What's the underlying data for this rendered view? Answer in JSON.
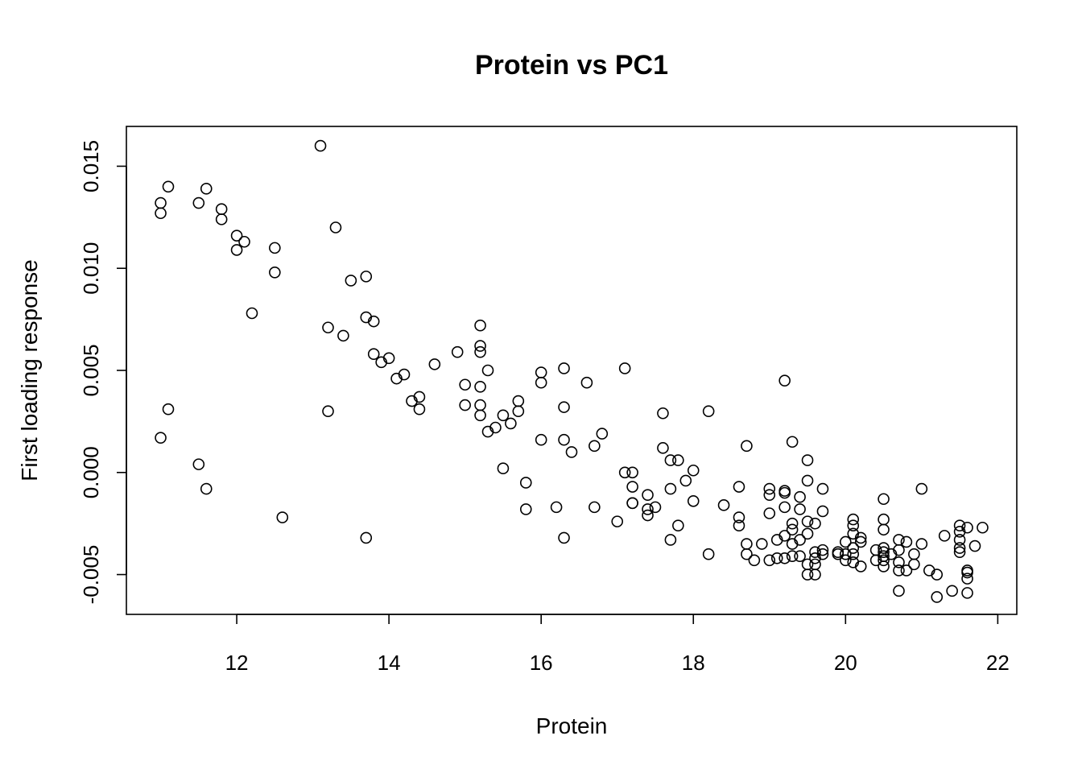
{
  "chart_data": {
    "type": "scatter",
    "title": "Protein vs PC1",
    "xlabel": "Protein",
    "ylabel": "First loading response",
    "xlim": [
      10.55,
      22.25
    ],
    "ylim": [
      -0.00695,
      0.01695
    ],
    "x_ticks": [
      12,
      14,
      16,
      18,
      20,
      22
    ],
    "x_tick_labels": [
      "12",
      "14",
      "16",
      "18",
      "20",
      "22"
    ],
    "y_ticks": [
      -0.005,
      0.0,
      0.005,
      0.01,
      0.015
    ],
    "y_tick_labels": [
      "-0.005",
      "0.000",
      "0.005",
      "0.010",
      "0.015"
    ],
    "grid": false,
    "legend": "none",
    "marker": "open-circle",
    "points": [
      [
        11.0,
        0.0132
      ],
      [
        11.0,
        0.0127
      ],
      [
        11.1,
        0.014
      ],
      [
        11.0,
        0.0017
      ],
      [
        11.1,
        0.0031
      ],
      [
        11.5,
        0.0132
      ],
      [
        11.6,
        0.0139
      ],
      [
        11.5,
        0.0004
      ],
      [
        11.6,
        -0.0008
      ],
      [
        11.8,
        0.0129
      ],
      [
        11.8,
        0.0124
      ],
      [
        12.0,
        0.0116
      ],
      [
        12.0,
        0.0109
      ],
      [
        12.1,
        0.0113
      ],
      [
        12.2,
        0.0078
      ],
      [
        12.5,
        0.011
      ],
      [
        12.5,
        0.0098
      ],
      [
        12.6,
        -0.0022
      ],
      [
        13.1,
        0.016
      ],
      [
        13.2,
        0.0071
      ],
      [
        13.2,
        0.003
      ],
      [
        13.3,
        0.012
      ],
      [
        13.4,
        0.0067
      ],
      [
        13.5,
        0.0094
      ],
      [
        13.7,
        0.0096
      ],
      [
        13.7,
        0.0076
      ],
      [
        13.7,
        -0.0032
      ],
      [
        13.8,
        0.0074
      ],
      [
        13.8,
        0.0058
      ],
      [
        13.9,
        0.0054
      ],
      [
        14.0,
        0.0056
      ],
      [
        14.1,
        0.0046
      ],
      [
        14.2,
        0.0048
      ],
      [
        14.3,
        0.0035
      ],
      [
        14.4,
        0.0037
      ],
      [
        14.4,
        0.0031
      ],
      [
        14.6,
        0.0053
      ],
      [
        14.9,
        0.0059
      ],
      [
        15.0,
        0.0043
      ],
      [
        15.0,
        0.0033
      ],
      [
        15.2,
        0.0072
      ],
      [
        15.2,
        0.0062
      ],
      [
        15.2,
        0.0059
      ],
      [
        15.2,
        0.0042
      ],
      [
        15.2,
        0.0033
      ],
      [
        15.2,
        0.0028
      ],
      [
        15.3,
        0.005
      ],
      [
        15.3,
        0.002
      ],
      [
        15.4,
        0.0022
      ],
      [
        15.5,
        0.0028
      ],
      [
        15.5,
        0.0002
      ],
      [
        15.6,
        0.0024
      ],
      [
        15.7,
        0.0035
      ],
      [
        15.7,
        0.003
      ],
      [
        15.8,
        -0.0005
      ],
      [
        15.8,
        -0.0018
      ],
      [
        16.0,
        0.0049
      ],
      [
        16.0,
        0.0044
      ],
      [
        16.0,
        0.0016
      ],
      [
        16.2,
        -0.0017
      ],
      [
        16.3,
        0.0051
      ],
      [
        16.3,
        0.0032
      ],
      [
        16.3,
        0.0016
      ],
      [
        16.3,
        -0.0032
      ],
      [
        16.4,
        0.001
      ],
      [
        16.6,
        0.0044
      ],
      [
        16.7,
        0.0013
      ],
      [
        16.7,
        -0.0017
      ],
      [
        16.8,
        0.0019
      ],
      [
        17.0,
        -0.0024
      ],
      [
        17.1,
        0.0051
      ],
      [
        17.1,
        0.0
      ],
      [
        17.2,
        0.0
      ],
      [
        17.2,
        -0.0007
      ],
      [
        17.2,
        -0.0015
      ],
      [
        17.2,
        -0.0015
      ],
      [
        17.4,
        -0.0011
      ],
      [
        17.4,
        -0.0018
      ],
      [
        17.4,
        -0.0021
      ],
      [
        17.5,
        -0.0017
      ],
      [
        17.6,
        0.0029
      ],
      [
        17.6,
        0.0012
      ],
      [
        17.7,
        0.0006
      ],
      [
        17.7,
        -0.0008
      ],
      [
        17.7,
        -0.0033
      ],
      [
        17.8,
        0.0006
      ],
      [
        17.8,
        -0.0026
      ],
      [
        17.9,
        -0.0004
      ],
      [
        18.0,
        0.0001
      ],
      [
        18.0,
        -0.0014
      ],
      [
        18.2,
        0.003
      ],
      [
        18.2,
        -0.004
      ],
      [
        18.4,
        -0.0016
      ],
      [
        18.6,
        -0.0007
      ],
      [
        18.6,
        -0.0022
      ],
      [
        18.6,
        -0.0026
      ],
      [
        18.7,
        0.0013
      ],
      [
        18.7,
        -0.0035
      ],
      [
        18.7,
        -0.004
      ],
      [
        18.8,
        -0.0043
      ],
      [
        18.9,
        -0.0035
      ],
      [
        19.0,
        -0.0008
      ],
      [
        19.0,
        -0.0011
      ],
      [
        19.0,
        -0.002
      ],
      [
        19.0,
        -0.0043
      ],
      [
        19.1,
        -0.0033
      ],
      [
        19.1,
        -0.0042
      ],
      [
        19.2,
        0.0045
      ],
      [
        19.2,
        -0.0009
      ],
      [
        19.2,
        -0.001
      ],
      [
        19.2,
        -0.0017
      ],
      [
        19.2,
        -0.0031
      ],
      [
        19.2,
        -0.0042
      ],
      [
        19.3,
        0.0015
      ],
      [
        19.3,
        -0.0025
      ],
      [
        19.3,
        -0.0028
      ],
      [
        19.3,
        -0.0035
      ],
      [
        19.3,
        -0.0041
      ],
      [
        19.4,
        -0.0012
      ],
      [
        19.4,
        -0.0018
      ],
      [
        19.4,
        -0.0033
      ],
      [
        19.4,
        -0.0041
      ],
      [
        19.5,
        0.0006
      ],
      [
        19.5,
        -0.0004
      ],
      [
        19.5,
        -0.0024
      ],
      [
        19.5,
        -0.003
      ],
      [
        19.5,
        -0.0045
      ],
      [
        19.5,
        -0.005
      ],
      [
        19.6,
        -0.0025
      ],
      [
        19.6,
        -0.0039
      ],
      [
        19.6,
        -0.0042
      ],
      [
        19.6,
        -0.0045
      ],
      [
        19.6,
        -0.005
      ],
      [
        19.7,
        -0.0008
      ],
      [
        19.7,
        -0.0019
      ],
      [
        19.7,
        -0.0038
      ],
      [
        19.7,
        -0.004
      ],
      [
        19.9,
        -0.0039
      ],
      [
        19.9,
        -0.004
      ],
      [
        20.0,
        -0.0034
      ],
      [
        20.0,
        -0.004
      ],
      [
        20.0,
        -0.0043
      ],
      [
        20.1,
        -0.0023
      ],
      [
        20.1,
        -0.0026
      ],
      [
        20.1,
        -0.003
      ],
      [
        20.1,
        -0.0037
      ],
      [
        20.1,
        -0.004
      ],
      [
        20.1,
        -0.0044
      ],
      [
        20.2,
        -0.0032
      ],
      [
        20.2,
        -0.0034
      ],
      [
        20.2,
        -0.0046
      ],
      [
        20.4,
        -0.0038
      ],
      [
        20.4,
        -0.0043
      ],
      [
        20.5,
        -0.0013
      ],
      [
        20.5,
        -0.0023
      ],
      [
        20.5,
        -0.0028
      ],
      [
        20.5,
        -0.0037
      ],
      [
        20.5,
        -0.0039
      ],
      [
        20.5,
        -0.0041
      ],
      [
        20.5,
        -0.0043
      ],
      [
        20.5,
        -0.0046
      ],
      [
        20.6,
        -0.004
      ],
      [
        20.7,
        -0.0033
      ],
      [
        20.7,
        -0.0038
      ],
      [
        20.7,
        -0.0044
      ],
      [
        20.7,
        -0.0048
      ],
      [
        20.7,
        -0.0058
      ],
      [
        20.8,
        -0.0034
      ],
      [
        20.8,
        -0.0048
      ],
      [
        20.9,
        -0.004
      ],
      [
        20.9,
        -0.0045
      ],
      [
        21.0,
        -0.0008
      ],
      [
        21.0,
        -0.0035
      ],
      [
        21.1,
        -0.0048
      ],
      [
        21.2,
        -0.005
      ],
      [
        21.2,
        -0.0061
      ],
      [
        21.3,
        -0.0031
      ],
      [
        21.4,
        -0.0058
      ],
      [
        21.5,
        -0.0026
      ],
      [
        21.5,
        -0.0029
      ],
      [
        21.5,
        -0.0033
      ],
      [
        21.5,
        -0.0037
      ],
      [
        21.5,
        -0.0039
      ],
      [
        21.6,
        -0.0027
      ],
      [
        21.6,
        -0.0048
      ],
      [
        21.6,
        -0.0049
      ],
      [
        21.6,
        -0.0052
      ],
      [
        21.6,
        -0.0059
      ],
      [
        21.7,
        -0.0036
      ],
      [
        21.8,
        -0.0027
      ]
    ]
  }
}
